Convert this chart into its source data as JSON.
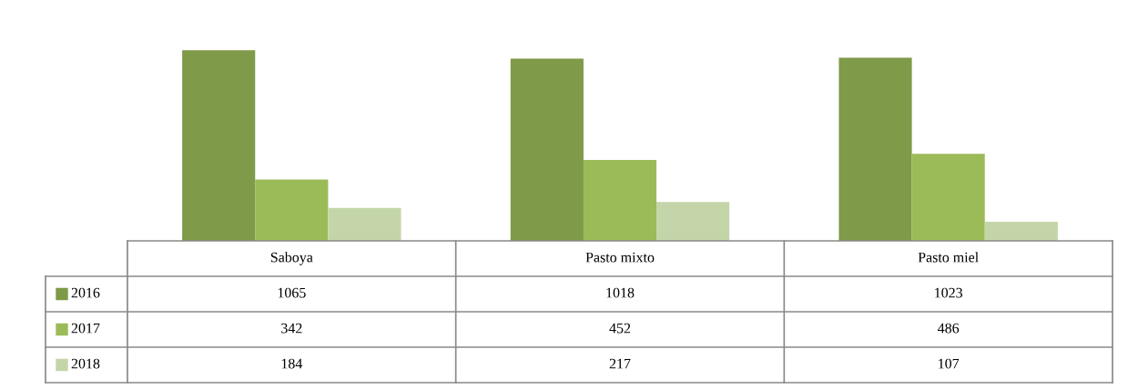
{
  "chart_data": {
    "type": "bar",
    "categories": [
      "Saboya",
      "Pasto mixto",
      "Pasto miel"
    ],
    "series": [
      {
        "name": "2016",
        "color": "#7f9a48",
        "values": [
          1065,
          1018,
          1023
        ]
      },
      {
        "name": "2017",
        "color": "#9bbb59",
        "values": [
          342,
          452,
          486
        ]
      },
      {
        "name": "2018",
        "color": "#c4d6a9",
        "values": [
          184,
          217,
          107
        ]
      }
    ],
    "data_labels": true,
    "legend": "bottom left"
  }
}
